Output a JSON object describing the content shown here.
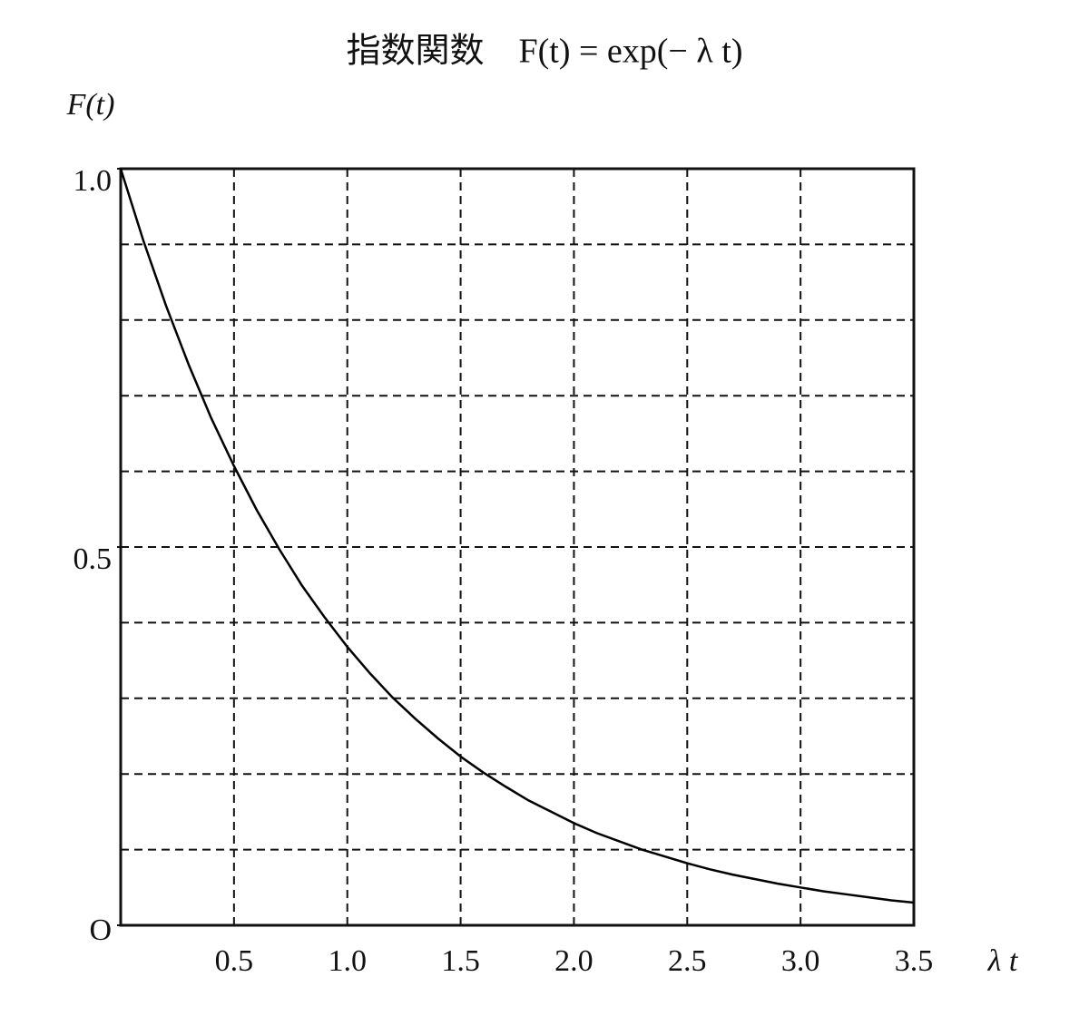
{
  "chart_data": {
    "type": "line",
    "title": "指数関数　F(t) = exp(− λ t)",
    "y_label": "F(t)",
    "x_label": "λ t",
    "x": [
      0,
      0.1,
      0.2,
      0.3,
      0.4,
      0.5,
      0.6,
      0.7,
      0.8,
      0.9,
      1.0,
      1.1,
      1.2,
      1.3,
      1.4,
      1.5,
      1.6,
      1.7,
      1.8,
      1.9,
      2.0,
      2.1,
      2.2,
      2.3,
      2.4,
      2.5,
      2.6,
      2.7,
      2.8,
      2.9,
      3.0,
      3.1,
      3.2,
      3.3,
      3.4,
      3.5
    ],
    "values": [
      1,
      0.905,
      0.819,
      0.741,
      0.67,
      0.607,
      0.549,
      0.497,
      0.449,
      0.407,
      0.368,
      0.333,
      0.301,
      0.273,
      0.247,
      0.223,
      0.202,
      0.183,
      0.165,
      0.15,
      0.135,
      0.122,
      0.111,
      0.1,
      0.091,
      0.082,
      0.074,
      0.067,
      0.061,
      0.055,
      0.05,
      0.045,
      0.041,
      0.037,
      0.033,
      0.03
    ],
    "color": "#000000",
    "xlim": [
      0,
      3.5
    ],
    "ylim": [
      0,
      1
    ],
    "xticks": [
      0.5,
      {
        "value": 1,
        "label": "1.0"
      },
      1.5,
      {
        "value": 2,
        "label": "2.0"
      },
      2.5,
      {
        "value": 3,
        "label": "3.0"
      },
      3.5
    ],
    "yticks": [
      {
        "value": 0,
        "label": "O"
      },
      0.5,
      {
        "value": 1,
        "label": "1.0"
      }
    ],
    "ygrid": [
      0.1,
      0.2,
      0.3,
      0.4,
      0.5,
      0.6,
      0.7,
      0.8,
      0.9
    ],
    "grid": true
  }
}
